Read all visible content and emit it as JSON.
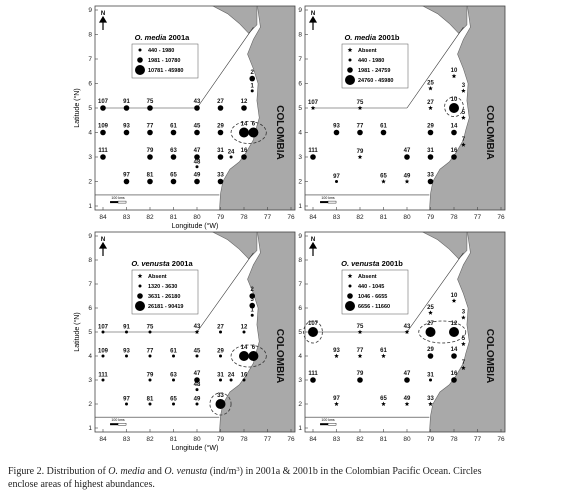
{
  "axes": {
    "xticks": [
      84,
      83,
      82,
      81,
      80,
      79,
      78,
      77,
      76
    ],
    "yticks": [
      1,
      2,
      3,
      4,
      5,
      6,
      7,
      8,
      9
    ],
    "xlabel": "Longitude (°W)",
    "ylabel": "Latitude (°N)",
    "north": "N",
    "country": "COLOMBIA",
    "scale": "100 kms"
  },
  "panels": [
    {
      "species": "O. media",
      "period": "2001a",
      "legend": [
        {
          "label": "440 - 1980",
          "marker": "dot",
          "stations": [
            {
              "label": "1",
              "lon": 77.65,
              "lat": 5.7
            },
            {
              "label": "24",
              "lon": 78.55,
              "lat": 3
            },
            {
              "label": "48",
              "lon": 80,
              "lat": 2.6
            }
          ]
        },
        {
          "label": "1981 - 10780",
          "marker": "dot",
          "stations": [
            {
              "label": "107",
              "lon": 84,
              "lat": 5
            },
            {
              "label": "91",
              "lon": 83,
              "lat": 5
            },
            {
              "label": "75",
              "lon": 82,
              "lat": 5
            },
            {
              "label": "43",
              "lon": 80,
              "lat": 5
            },
            {
              "label": "27",
              "lon": 79,
              "lat": 5
            },
            {
              "label": "12",
              "lon": 78,
              "lat": 5
            },
            {
              "label": "2",
              "lon": 77.65,
              "lat": 6.2
            },
            {
              "label": "109",
              "lon": 84,
              "lat": 4
            },
            {
              "label": "93",
              "lon": 83,
              "lat": 4
            },
            {
              "label": "77",
              "lon": 82,
              "lat": 4
            },
            {
              "label": "61",
              "lon": 81,
              "lat": 4
            },
            {
              "label": "45",
              "lon": 80,
              "lat": 4
            },
            {
              "label": "29",
              "lon": 79,
              "lat": 4
            },
            {
              "label": "111",
              "lon": 84,
              "lat": 3
            },
            {
              "label": "79",
              "lon": 82,
              "lat": 3
            },
            {
              "label": "63",
              "lon": 81,
              "lat": 3
            },
            {
              "label": "47",
              "lon": 80,
              "lat": 3
            },
            {
              "label": "31",
              "lon": 79,
              "lat": 3
            },
            {
              "label": "16",
              "lon": 78,
              "lat": 3
            },
            {
              "label": "97",
              "lon": 83,
              "lat": 2
            },
            {
              "label": "81",
              "lon": 82,
              "lat": 2
            },
            {
              "label": "65",
              "lon": 81,
              "lat": 2
            },
            {
              "label": "49",
              "lon": 80,
              "lat": 2
            },
            {
              "label": "33",
              "lon": 79,
              "lat": 2
            }
          ]
        },
        {
          "label": "10781 - 45980",
          "marker": "dot",
          "stations": [
            {
              "label": "14",
              "lon": 78,
              "lat": 4
            },
            {
              "label": "6",
              "lon": 77.6,
              "lat": 4
            }
          ]
        }
      ]
    },
    {
      "species": "O. media",
      "period": "2001b",
      "legend": [
        {
          "label": "Absent",
          "marker": "star",
          "stations": [
            {
              "label": "25",
              "lon": 79,
              "lat": 5.8
            },
            {
              "label": "10",
              "lon": 78,
              "lat": 6.3
            },
            {
              "label": "3",
              "lon": 77.6,
              "lat": 5.7
            },
            {
              "label": "107",
              "lon": 84,
              "lat": 5
            },
            {
              "label": "75",
              "lon": 82,
              "lat": 5
            },
            {
              "label": "27",
              "lon": 79,
              "lat": 5
            },
            {
              "label": "5",
              "lon": 77.6,
              "lat": 4.6
            },
            {
              "label": "7",
              "lon": 77.6,
              "lat": 3.5
            },
            {
              "label": "79",
              "lon": 82,
              "lat": 3
            },
            {
              "label": "65",
              "lon": 81,
              "lat": 2
            },
            {
              "label": "49",
              "lon": 80,
              "lat": 2
            }
          ]
        },
        {
          "label": "440 - 1980",
          "marker": "dot",
          "stations": [
            {
              "label": "97",
              "lon": 83,
              "lat": 2
            }
          ]
        },
        {
          "label": "1981 - 24759",
          "marker": "dot",
          "stations": [
            {
              "label": "93",
              "lon": 83,
              "lat": 4
            },
            {
              "label": "77",
              "lon": 82,
              "lat": 4
            },
            {
              "label": "61",
              "lon": 81,
              "lat": 4
            },
            {
              "label": "29",
              "lon": 79,
              "lat": 4
            },
            {
              "label": "14",
              "lon": 78,
              "lat": 4
            },
            {
              "label": "111",
              "lon": 84,
              "lat": 3
            },
            {
              "label": "47",
              "lon": 80,
              "lat": 3
            },
            {
              "label": "31",
              "lon": 79,
              "lat": 3
            },
            {
              "label": "16",
              "lon": 78,
              "lat": 3
            },
            {
              "label": "33",
              "lon": 79,
              "lat": 2
            }
          ]
        },
        {
          "label": "24760 - 45980",
          "marker": "dot",
          "stations": [
            {
              "label": "10",
              "lon": 78,
              "lat": 5
            }
          ]
        }
      ]
    },
    {
      "species": "O. venusta",
      "period": "2001a",
      "legend": [
        {
          "label": "Absent",
          "marker": "star",
          "stations": [
            {
              "label": "43",
              "lon": 80,
              "lat": 5
            }
          ]
        },
        {
          "label": "1320 - 3630",
          "marker": "dot",
          "stations": [
            {
              "label": "107",
              "lon": 84,
              "lat": 5
            },
            {
              "label": "91",
              "lon": 83,
              "lat": 5
            },
            {
              "label": "75",
              "lon": 82,
              "lat": 5
            },
            {
              "label": "27",
              "lon": 79,
              "lat": 5
            },
            {
              "label": "12",
              "lon": 78,
              "lat": 5
            },
            {
              "label": "1",
              "lon": 77.65,
              "lat": 5.7
            },
            {
              "label": "109",
              "lon": 84,
              "lat": 4
            },
            {
              "label": "93",
              "lon": 83,
              "lat": 4
            },
            {
              "label": "77",
              "lon": 82,
              "lat": 4
            },
            {
              "label": "61",
              "lon": 81,
              "lat": 4
            },
            {
              "label": "45",
              "lon": 80,
              "lat": 4
            },
            {
              "label": "29",
              "lon": 79,
              "lat": 4
            },
            {
              "label": "111",
              "lon": 84,
              "lat": 3
            },
            {
              "label": "79",
              "lon": 82,
              "lat": 3
            },
            {
              "label": "63",
              "lon": 81,
              "lat": 3
            },
            {
              "label": "31",
              "lon": 79,
              "lat": 3
            },
            {
              "label": "24",
              "lon": 78.55,
              "lat": 3
            },
            {
              "label": "16",
              "lon": 78,
              "lat": 3
            },
            {
              "label": "48",
              "lon": 80,
              "lat": 2.6
            },
            {
              "label": "97",
              "lon": 83,
              "lat": 2
            },
            {
              "label": "81",
              "lon": 82,
              "lat": 2
            },
            {
              "label": "65",
              "lon": 81,
              "lat": 2
            },
            {
              "label": "49",
              "lon": 80,
              "lat": 2
            }
          ]
        },
        {
          "label": "3631 - 26180",
          "marker": "dot",
          "stations": [
            {
              "label": "2",
              "lon": 77.65,
              "lat": 6.5
            },
            {
              "label": "3",
              "lon": 77.65,
              "lat": 6.1
            },
            {
              "label": "47",
              "lon": 80,
              "lat": 3
            }
          ]
        },
        {
          "label": "26181 - 90419",
          "marker": "dot",
          "stations": [
            {
              "label": "14",
              "lon": 78,
              "lat": 4
            },
            {
              "label": "6",
              "lon": 77.6,
              "lat": 4
            },
            {
              "label": "33",
              "lon": 79,
              "lat": 2
            }
          ]
        }
      ]
    },
    {
      "species": "O. venusta",
      "period": "2001b",
      "legend": [
        {
          "label": "Absent",
          "marker": "star",
          "stations": [
            {
              "label": "25",
              "lon": 79,
              "lat": 5.8
            },
            {
              "label": "10",
              "lon": 78,
              "lat": 6.3
            },
            {
              "label": "3",
              "lon": 77.6,
              "lat": 5.6
            },
            {
              "label": "75",
              "lon": 82,
              "lat": 5
            },
            {
              "label": "43",
              "lon": 80,
              "lat": 5
            },
            {
              "label": "5",
              "lon": 77.6,
              "lat": 4.5
            },
            {
              "label": "93",
              "lon": 83,
              "lat": 4
            },
            {
              "label": "77",
              "lon": 82,
              "lat": 4
            },
            {
              "label": "61",
              "lon": 81,
              "lat": 4
            },
            {
              "label": "7",
              "lon": 77.6,
              "lat": 3.5
            },
            {
              "label": "97",
              "lon": 83,
              "lat": 2
            },
            {
              "label": "65",
              "lon": 81,
              "lat": 2
            },
            {
              "label": "49",
              "lon": 80,
              "lat": 2
            },
            {
              "label": "33",
              "lon": 79,
              "lat": 2
            }
          ]
        },
        {
          "label": "440 - 1045",
          "marker": "dot",
          "stations": [
            {
              "label": "31",
              "lon": 79,
              "lat": 3
            }
          ]
        },
        {
          "label": "1046 - 6655",
          "marker": "dot",
          "stations": [
            {
              "label": "29",
              "lon": 79,
              "lat": 4
            },
            {
              "label": "14",
              "lon": 78,
              "lat": 4
            },
            {
              "label": "111",
              "lon": 84,
              "lat": 3
            },
            {
              "label": "79",
              "lon": 82,
              "lat": 3
            },
            {
              "label": "47",
              "lon": 80,
              "lat": 3
            },
            {
              "label": "16",
              "lon": 78,
              "lat": 3
            }
          ]
        },
        {
          "label": "6656 - 11660",
          "marker": "dot",
          "stations": [
            {
              "label": "107",
              "lon": 84,
              "lat": 5
            },
            {
              "label": "27",
              "lon": 79,
              "lat": 5
            },
            {
              "label": "12",
              "lon": 78,
              "lat": 5
            }
          ]
        }
      ]
    }
  ],
  "caption": {
    "lines": [
      [
        {
          "text": "Figure 2. Distribution of "
        },
        {
          "text": "O. media",
          "style": "italic"
        },
        {
          "text": " and "
        },
        {
          "text": "O. venusta",
          "style": "italic"
        },
        {
          "text": " (ind/m"
        },
        {
          "text": "3",
          "style": "sup"
        },
        {
          "text": ") in 2001a & 2001b in the Colombian Pacific Ocean. Circles"
        }
      ],
      [
        {
          "text": "enclose areas of highest abundances."
        }
      ]
    ]
  }
}
